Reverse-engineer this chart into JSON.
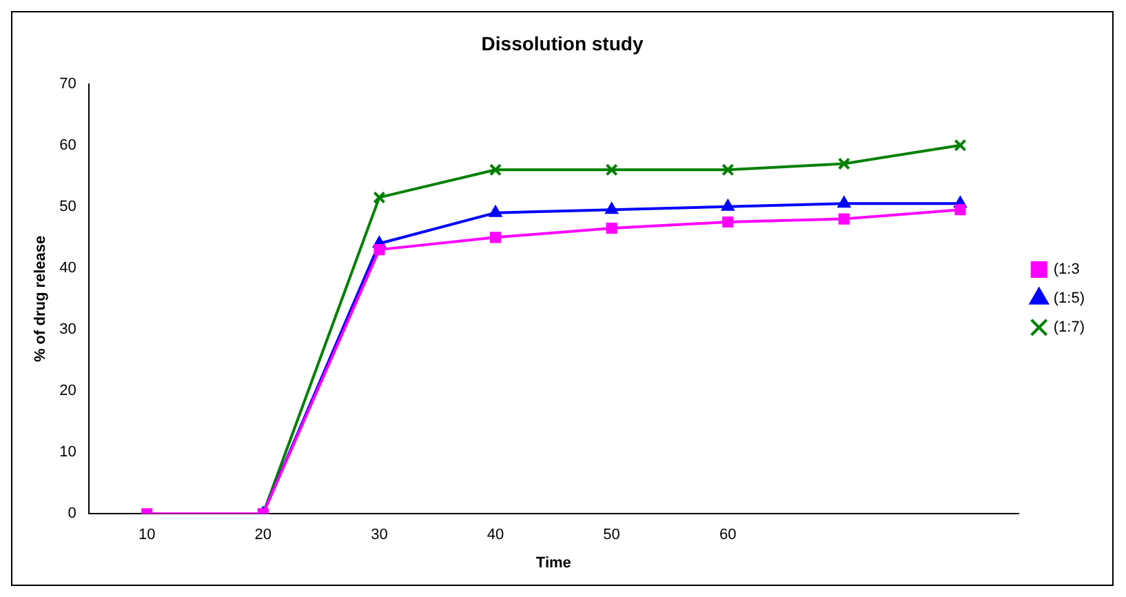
{
  "chart_data": {
    "type": "line",
    "title": "Dissolution study",
    "xlabel": "Time",
    "ylabel": "% of drug release",
    "categories": [
      "10",
      "20",
      "30",
      "40",
      "50",
      "60",
      null,
      null
    ],
    "series": [
      {
        "name": "(1:3",
        "color": "#ff00ff",
        "marker": "square",
        "values": [
          0,
          0,
          43,
          45,
          46.5,
          47.5,
          48,
          49.5
        ]
      },
      {
        "name": "(1:5)",
        "color": "#0000ff",
        "marker": "triangle",
        "values": [
          null,
          0,
          44,
          49,
          49.5,
          50,
          50.5,
          50.5
        ]
      },
      {
        "name": "(1:7)",
        "color": "#008000",
        "marker": "cross",
        "values": [
          null,
          0,
          51.5,
          56,
          56,
          56,
          57,
          60
        ]
      }
    ],
    "ylim": [
      0,
      70
    ],
    "yticks": [
      0,
      10,
      20,
      30,
      40,
      50,
      60,
      70
    ],
    "grid": false,
    "legend": "right"
  }
}
